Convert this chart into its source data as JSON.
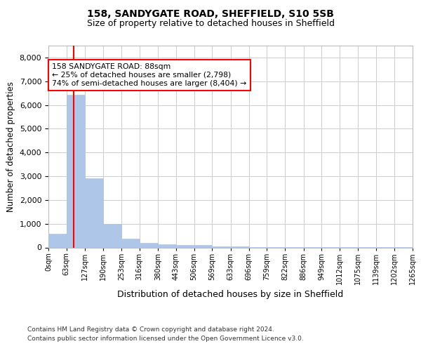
{
  "title1": "158, SANDYGATE ROAD, SHEFFIELD, S10 5SB",
  "title2": "Size of property relative to detached houses in Sheffield",
  "xlabel": "Distribution of detached houses by size in Sheffield",
  "ylabel": "Number of detached properties",
  "bar_edges": [
    0,
    63,
    127,
    190,
    253,
    316,
    380,
    443,
    506,
    569,
    633,
    696,
    759,
    822,
    886,
    949,
    1012,
    1075,
    1139,
    1202,
    1265
  ],
  "bar_heights": [
    580,
    6440,
    2920,
    980,
    370,
    190,
    120,
    90,
    110,
    50,
    30,
    20,
    15,
    10,
    8,
    5,
    5,
    4,
    3,
    2
  ],
  "bar_color": "#aec6e8",
  "bar_edgecolor": "#aec6e8",
  "grid_color": "#cccccc",
  "property_line_x": 88,
  "property_line_color": "red",
  "annotation_line1": "158 SANDYGATE ROAD: 88sqm",
  "annotation_line2": "← 25% of detached houses are smaller (2,798)",
  "annotation_line3": "74% of semi-detached houses are larger (8,404) →",
  "ylim": [
    0,
    8500
  ],
  "yticks": [
    0,
    1000,
    2000,
    3000,
    4000,
    5000,
    6000,
    7000,
    8000
  ],
  "tick_labels": [
    "0sqm",
    "63sqm",
    "127sqm",
    "190sqm",
    "253sqm",
    "316sqm",
    "380sqm",
    "443sqm",
    "506sqm",
    "569sqm",
    "633sqm",
    "696sqm",
    "759sqm",
    "822sqm",
    "886sqm",
    "949sqm",
    "1012sqm",
    "1075sqm",
    "1139sqm",
    "1202sqm",
    "1265sqm"
  ],
  "footer1": "Contains HM Land Registry data © Crown copyright and database right 2024.",
  "footer2": "Contains public sector information licensed under the Open Government Licence v3.0.",
  "background_color": "#ffffff"
}
